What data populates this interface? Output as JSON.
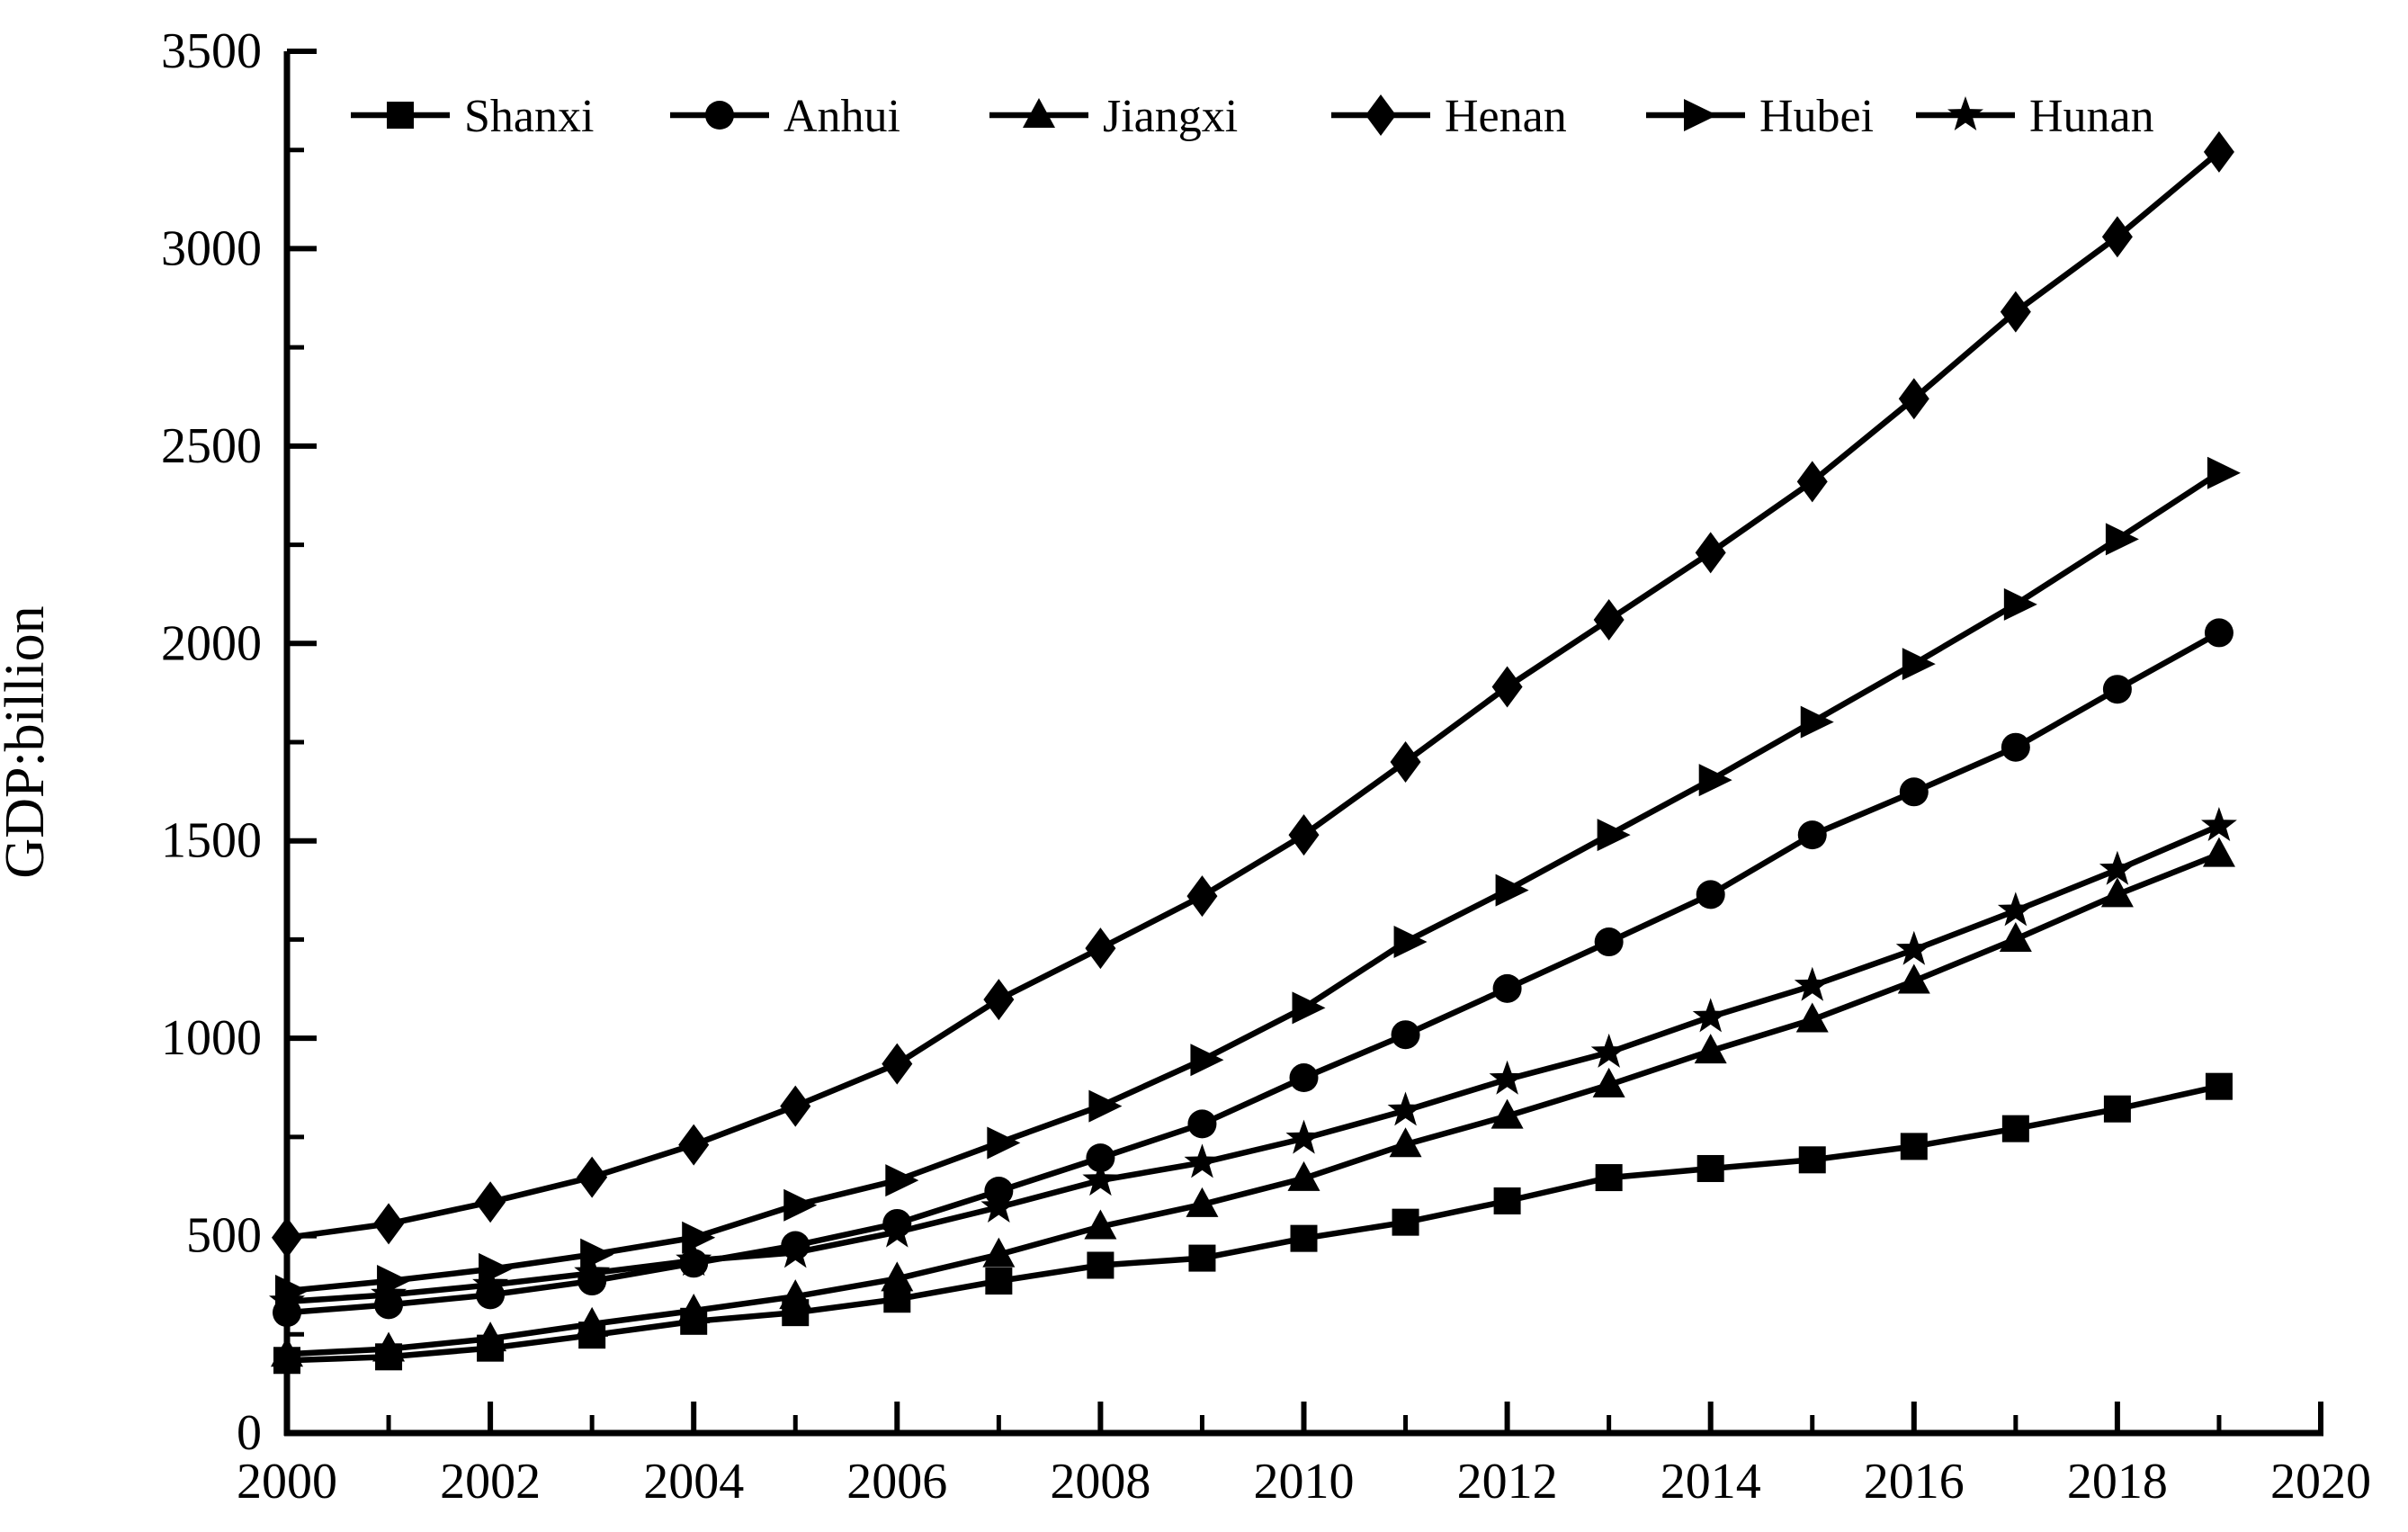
{
  "figure": {
    "background_color": "#ffffff",
    "line_color": "#000000"
  },
  "chart_data": {
    "type": "line",
    "title": "",
    "xlabel": "",
    "ylabel": "GDP:billion",
    "xlim": [
      2000,
      2020
    ],
    "ylim": [
      0,
      3500
    ],
    "grid": false,
    "legend_position": "top-inside",
    "x_major_ticks": [
      2000,
      2002,
      2004,
      2006,
      2008,
      2010,
      2012,
      2014,
      2016,
      2018,
      2020
    ],
    "x_minor_ticks": [
      2001,
      2003,
      2005,
      2007,
      2009,
      2011,
      2013,
      2015,
      2017,
      2019
    ],
    "y_major_ticks": [
      0,
      500,
      1000,
      1500,
      2000,
      2500,
      3000,
      3500
    ],
    "y_minor_ticks": [
      250,
      750,
      1250,
      1750,
      2250,
      2750,
      3250
    ],
    "x": [
      2000,
      2001,
      2002,
      2003,
      2004,
      2005,
      2006,
      2007,
      2008,
      2009,
      2010,
      2011,
      2012,
      2013,
      2014,
      2015,
      2016,
      2017,
      2018,
      2019
    ],
    "series": [
      {
        "name": "Shanxi",
        "marker": "square",
        "color": "#000000",
        "values": [
          184,
          193,
          215,
          248,
          283,
          305,
          339,
          385,
          425,
          443,
          493,
          534,
          588,
          647,
          670,
          692,
          726,
          771,
          821,
          878
        ]
      },
      {
        "name": "Anhui",
        "marker": "circle",
        "color": "#000000",
        "values": [
          305,
          325,
          350,
          385,
          430,
          475,
          531,
          613,
          697,
          783,
          900,
          1009,
          1126,
          1244,
          1364,
          1515,
          1624,
          1737,
          1884,
          2027
        ]
      },
      {
        "name": "Jiangxi",
        "marker": "triangle-up",
        "color": "#000000",
        "values": [
          200,
          213,
          239,
          276,
          310,
          346,
          391,
          452,
          523,
          579,
          645,
          731,
          803,
          882,
          968,
          1047,
          1145,
          1251,
          1364,
          1466
        ]
      },
      {
        "name": "Henan",
        "marker": "diamond",
        "color": "#000000",
        "values": [
          495,
          530,
          585,
          648,
          730,
          828,
          935,
          1098,
          1228,
          1360,
          1515,
          1700,
          1890,
          2060,
          2230,
          2410,
          2620,
          2840,
          3030,
          3245
        ]
      },
      {
        "name": "Hubei",
        "marker": "triangle-right",
        "color": "#000000",
        "values": [
          360,
          385,
          415,
          452,
          495,
          577,
          640,
          735,
          828,
          945,
          1077,
          1244,
          1375,
          1515,
          1654,
          1801,
          1948,
          2099,
          2264,
          2432
        ]
      },
      {
        "name": "Hunan",
        "marker": "star",
        "color": "#000000",
        "values": [
          333,
          350,
          375,
          405,
          437,
          457,
          509,
          572,
          640,
          685,
          746,
          817,
          896,
          964,
          1054,
          1133,
          1224,
          1323,
          1427,
          1538
        ]
      }
    ]
  }
}
